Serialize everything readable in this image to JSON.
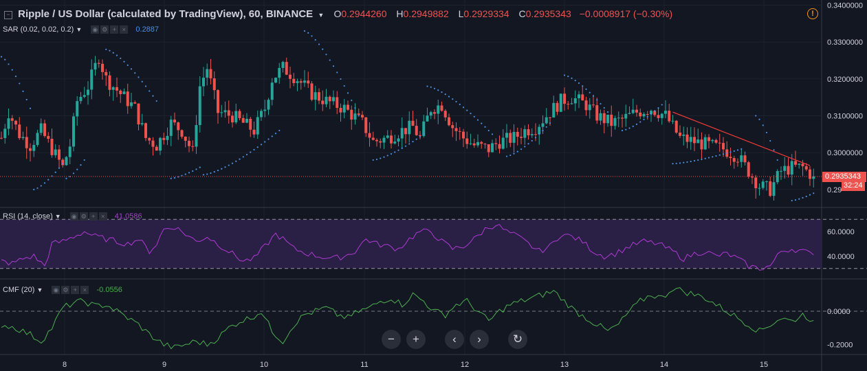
{
  "header": {
    "title": "Ripple / US Dollar (calculated by TradingView), 60, BINANCE",
    "open_key": "O",
    "open": "0.2944260",
    "high_key": "H",
    "high": "0.2949882",
    "low_key": "L",
    "low": "0.2929334",
    "close_key": "C",
    "close": "0.2935343",
    "change": "−0.0008917 (−0.30%)"
  },
  "indicators": {
    "sar": {
      "label": "SAR (0.02, 0.02, 0.2)",
      "value": "0.2887"
    },
    "rsi": {
      "label": "RSI (14, close)",
      "value": "41.0586"
    },
    "cmf": {
      "label": "CMF (20)",
      "value": "-0.0556"
    }
  },
  "price_tag": "0.2935343",
  "countdown": "32:24",
  "nav_buttons": [
    "−",
    "+",
    "‹",
    "›",
    "↻"
  ],
  "colors": {
    "background": "#131722",
    "up": "#26a69a",
    "down": "#ef5350",
    "sar": "#4a90e2",
    "rsi": "#b03ad6",
    "rsi_band": "#2a1f44",
    "cmf": "#4caf50",
    "trendline": "#e53935",
    "grid": "#1e2230"
  },
  "chart_data": [
    {
      "type": "candlestick",
      "title": "Ripple / US Dollar (calculated by TradingView), 60, BINANCE",
      "xlabel": "",
      "ylabel": "",
      "x_ticks": [
        "8",
        "9",
        "10",
        "11",
        "12",
        "13",
        "14",
        "15"
      ],
      "y_ticks": [
        0.29,
        0.3,
        0.31,
        0.32,
        0.33,
        0.34
      ],
      "y_tick_labels": [
        "0.29",
        "0.3000000",
        "0.3100000",
        "0.3200000",
        "0.3300000",
        "0.3400000"
      ],
      "ylim": [
        0.2855,
        0.3414
      ],
      "grid": true,
      "anchors": [
        [
          0,
          0.304
        ],
        [
          2,
          0.311
        ],
        [
          5,
          0.305
        ],
        [
          8,
          0.302
        ],
        [
          11,
          0.306
        ],
        [
          14,
          0.301
        ],
        [
          17,
          0.296
        ],
        [
          19,
          0.302
        ],
        [
          21,
          0.314
        ],
        [
          24,
          0.318
        ],
        [
          27,
          0.326
        ],
        [
          29,
          0.32
        ],
        [
          33,
          0.316
        ],
        [
          37,
          0.312
        ],
        [
          40,
          0.304
        ],
        [
          43,
          0.302
        ],
        [
          47,
          0.308
        ],
        [
          50,
          0.306
        ],
        [
          53,
          0.3
        ],
        [
          55,
          0.318
        ],
        [
          57,
          0.323
        ],
        [
          60,
          0.311
        ],
        [
          64,
          0.31
        ],
        [
          67,
          0.308
        ],
        [
          70,
          0.306
        ],
        [
          73,
          0.312
        ],
        [
          75,
          0.32
        ],
        [
          78,
          0.323
        ],
        [
          82,
          0.32
        ],
        [
          86,
          0.316
        ],
        [
          90,
          0.314
        ],
        [
          95,
          0.312
        ],
        [
          100,
          0.308
        ],
        [
          103,
          0.303
        ],
        [
          107,
          0.304
        ],
        [
          111,
          0.306
        ],
        [
          114,
          0.307
        ],
        [
          116,
          0.304
        ],
        [
          119,
          0.312
        ],
        [
          122,
          0.313
        ],
        [
          125,
          0.307
        ],
        [
          128,
          0.304
        ],
        [
          131,
          0.302
        ],
        [
          135,
          0.301
        ],
        [
          138,
          0.303
        ],
        [
          142,
          0.304
        ],
        [
          145,
          0.306
        ],
        [
          148,
          0.307
        ],
        [
          152,
          0.311
        ],
        [
          155,
          0.314
        ],
        [
          158,
          0.315
        ],
        [
          162,
          0.313
        ],
        [
          165,
          0.31
        ],
        [
          169,
          0.308
        ],
        [
          172,
          0.309
        ],
        [
          176,
          0.311
        ],
        [
          180,
          0.312
        ],
        [
          184,
          0.31
        ],
        [
          188,
          0.304
        ],
        [
          192,
          0.303
        ],
        [
          196,
          0.302
        ],
        [
          200,
          0.301
        ],
        [
          204,
          0.299
        ],
        [
          207,
          0.295
        ],
        [
          210,
          0.291
        ],
        [
          213,
          0.29
        ],
        [
          216,
          0.295
        ],
        [
          219,
          0.296
        ],
        [
          222,
          0.296
        ],
        [
          225,
          0.2935
        ]
      ],
      "last_close": 0.2935343,
      "sar_series": [
        {
          "from": 0,
          "to": 8,
          "start": 0.326,
          "end": 0.312,
          "direction": "down"
        },
        {
          "from": 9,
          "to": 17,
          "start": 0.29,
          "end": 0.297,
          "direction": "up"
        },
        {
          "from": 18,
          "to": 23,
          "start": 0.293,
          "end": 0.298,
          "direction": "up"
        },
        {
          "from": 29,
          "to": 43,
          "start": 0.328,
          "end": 0.314,
          "direction": "down"
        },
        {
          "from": 47,
          "to": 55,
          "start": 0.293,
          "end": 0.296,
          "direction": "up"
        },
        {
          "from": 56,
          "to": 77,
          "start": 0.294,
          "end": 0.306,
          "direction": "up"
        },
        {
          "from": 84,
          "to": 99,
          "start": 0.333,
          "end": 0.31,
          "direction": "down"
        },
        {
          "from": 103,
          "to": 117,
          "start": 0.298,
          "end": 0.305,
          "direction": "up"
        },
        {
          "from": 118,
          "to": 136,
          "start": 0.318,
          "end": 0.305,
          "direction": "down"
        },
        {
          "from": 140,
          "to": 152,
          "start": 0.299,
          "end": 0.308,
          "direction": "up"
        },
        {
          "from": 156,
          "to": 168,
          "start": 0.321,
          "end": 0.311,
          "direction": "down"
        },
        {
          "from": 172,
          "to": 183,
          "start": 0.306,
          "end": 0.313,
          "direction": "up"
        },
        {
          "from": 186,
          "to": 205,
          "start": 0.297,
          "end": 0.301,
          "direction": "up"
        },
        {
          "from": 209,
          "to": 215,
          "start": 0.31,
          "end": 0.298,
          "direction": "down"
        },
        {
          "from": 219,
          "to": 225,
          "start": 0.287,
          "end": 0.289,
          "direction": "up"
        }
      ],
      "trendline": [
        [
          186,
          0.311
        ],
        [
          224,
          0.2965
        ]
      ]
    },
    {
      "type": "line",
      "name": "RSI (14, close)",
      "y_ticks": [
        40,
        60
      ],
      "y_tick_labels": [
        "40.0000",
        "60.0000"
      ],
      "ylim": [
        22,
        78
      ],
      "band": [
        30,
        70
      ],
      "anchors": [
        [
          0,
          36
        ],
        [
          3,
          34
        ],
        [
          6,
          38
        ],
        [
          9,
          40
        ],
        [
          12,
          32
        ],
        [
          14,
          50
        ],
        [
          17,
          52
        ],
        [
          20,
          56
        ],
        [
          23,
          60
        ],
        [
          26,
          56
        ],
        [
          29,
          54
        ],
        [
          32,
          52
        ],
        [
          35,
          50
        ],
        [
          38,
          54
        ],
        [
          41,
          44
        ],
        [
          43,
          50
        ],
        [
          45,
          62
        ],
        [
          48,
          64
        ],
        [
          51,
          58
        ],
        [
          54,
          52
        ],
        [
          57,
          56
        ],
        [
          60,
          50
        ],
        [
          64,
          42
        ],
        [
          67,
          36
        ],
        [
          70,
          38
        ],
        [
          73,
          48
        ],
        [
          76,
          58
        ],
        [
          78,
          54
        ],
        [
          81,
          46
        ],
        [
          85,
          42
        ],
        [
          88,
          40
        ],
        [
          92,
          38
        ],
        [
          95,
          40
        ],
        [
          98,
          44
        ],
        [
          101,
          54
        ],
        [
          104,
          50
        ],
        [
          107,
          48
        ],
        [
          110,
          46
        ],
        [
          113,
          54
        ],
        [
          116,
          60
        ],
        [
          119,
          60
        ],
        [
          122,
          52
        ],
        [
          125,
          46
        ],
        [
          128,
          48
        ],
        [
          131,
          54
        ],
        [
          134,
          62
        ],
        [
          137,
          66
        ],
        [
          140,
          60
        ],
        [
          143,
          56
        ],
        [
          146,
          50
        ],
        [
          149,
          44
        ],
        [
          152,
          48
        ],
        [
          155,
          58
        ],
        [
          158,
          56
        ],
        [
          161,
          52
        ],
        [
          164,
          44
        ],
        [
          167,
          40
        ],
        [
          170,
          42
        ],
        [
          174,
          48
        ],
        [
          178,
          52
        ],
        [
          182,
          50
        ],
        [
          186,
          44
        ],
        [
          189,
          38
        ],
        [
          192,
          42
        ],
        [
          195,
          44
        ],
        [
          198,
          40
        ],
        [
          201,
          42
        ],
        [
          204,
          38
        ],
        [
          207,
          32
        ],
        [
          210,
          30
        ],
        [
          213,
          32
        ],
        [
          216,
          44
        ],
        [
          219,
          46
        ],
        [
          222,
          44
        ],
        [
          225,
          41.06
        ]
      ]
    },
    {
      "type": "line",
      "name": "CMF (20)",
      "y_ticks": [
        0,
        -0.2
      ],
      "y_tick_labels": [
        "0.0000",
        "-0.2000"
      ],
      "ylim": [
        -0.26,
        0.19
      ],
      "zero_line": true,
      "anchors": [
        [
          0,
          -0.08
        ],
        [
          4,
          -0.1
        ],
        [
          8,
          -0.14
        ],
        [
          11,
          -0.18
        ],
        [
          14,
          -0.1
        ],
        [
          17,
          0.02
        ],
        [
          20,
          0.05
        ],
        [
          23,
          0.06
        ],
        [
          26,
          0.03
        ],
        [
          29,
          0.04
        ],
        [
          32,
          0.0
        ],
        [
          35,
          -0.04
        ],
        [
          38,
          -0.08
        ],
        [
          41,
          -0.14
        ],
        [
          45,
          -0.2
        ],
        [
          48,
          -0.22
        ],
        [
          51,
          -0.2
        ],
        [
          54,
          -0.18
        ],
        [
          57,
          -0.2
        ],
        [
          60,
          -0.16
        ],
        [
          63,
          -0.1
        ],
        [
          66,
          -0.06
        ],
        [
          69,
          -0.04
        ],
        [
          72,
          0.0
        ],
        [
          75,
          -0.12
        ],
        [
          78,
          -0.18
        ],
        [
          81,
          -0.08
        ],
        [
          84,
          -0.02
        ],
        [
          87,
          0.0
        ],
        [
          90,
          0.02
        ],
        [
          93,
          -0.02
        ],
        [
          96,
          -0.04
        ],
        [
          99,
          0.0
        ],
        [
          102,
          0.02
        ],
        [
          105,
          0.06
        ],
        [
          108,
          0.08
        ],
        [
          111,
          0.04
        ],
        [
          114,
          0.1
        ],
        [
          117,
          0.06
        ],
        [
          120,
          0.0
        ],
        [
          123,
          -0.02
        ],
        [
          126,
          0.04
        ],
        [
          129,
          0.06
        ],
        [
          132,
          0.0
        ],
        [
          135,
          -0.06
        ],
        [
          138,
          0.0
        ],
        [
          141,
          0.04
        ],
        [
          144,
          0.06
        ],
        [
          147,
          0.08
        ],
        [
          150,
          0.1
        ],
        [
          153,
          0.12
        ],
        [
          156,
          0.06
        ],
        [
          159,
          0.0
        ],
        [
          162,
          -0.04
        ],
        [
          165,
          -0.08
        ],
        [
          168,
          -0.12
        ],
        [
          171,
          -0.08
        ],
        [
          174,
          0.0
        ],
        [
          177,
          0.06
        ],
        [
          180,
          0.1
        ],
        [
          183,
          0.08
        ],
        [
          186,
          0.14
        ],
        [
          189,
          0.12
        ],
        [
          192,
          0.1
        ],
        [
          195,
          0.08
        ],
        [
          198,
          0.04
        ],
        [
          201,
          0.0
        ],
        [
          204,
          -0.04
        ],
        [
          207,
          -0.08
        ],
        [
          210,
          -0.12
        ],
        [
          213,
          -0.08
        ],
        [
          216,
          -0.04
        ],
        [
          219,
          -0.06
        ],
        [
          222,
          -0.02
        ],
        [
          225,
          -0.0556
        ]
      ]
    }
  ]
}
